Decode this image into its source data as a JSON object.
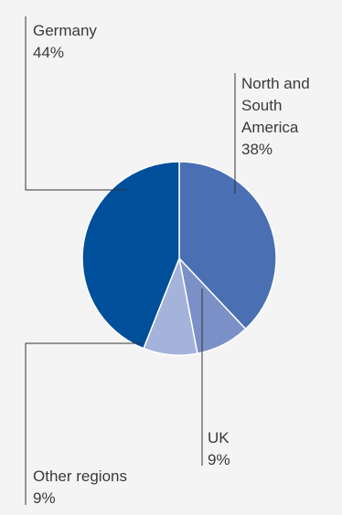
{
  "chart_data": {
    "type": "pie",
    "title": "",
    "start": "12 o'clock",
    "direction": "clockwise",
    "slices": [
      {
        "label_lines": [
          "North and",
          "South",
          "America"
        ],
        "value": 38,
        "value_label": "38%",
        "color": "#4a6fb3"
      },
      {
        "label_lines": [
          "UK"
        ],
        "value": 9,
        "value_label": "9%",
        "color": "#7b90c6"
      },
      {
        "label_lines": [
          "Other regions"
        ],
        "value": 9,
        "value_label": "9%",
        "color": "#a3b3da"
      },
      {
        "label_lines": [
          "Germany"
        ],
        "value": 44,
        "value_label": "44%",
        "color": "#004f9b"
      }
    ]
  }
}
